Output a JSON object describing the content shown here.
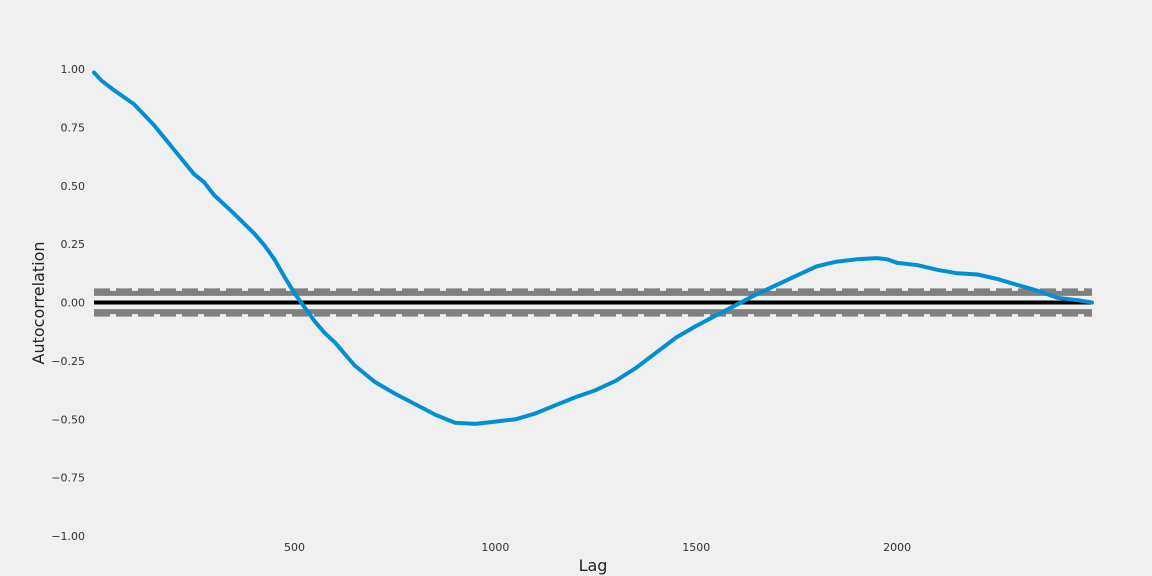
{
  "chart_data": {
    "type": "line",
    "title": "",
    "xlabel": "Lag",
    "ylabel": "Autocorrelation",
    "xlim": [
      1,
      2485
    ],
    "ylim": [
      -1.0,
      1.0
    ],
    "xticks": [
      500,
      1000,
      1500,
      2000
    ],
    "xtick_labels": [
      "500",
      "1000",
      "1500",
      "2000"
    ],
    "yticks": [
      1.0,
      0.75,
      0.5,
      0.25,
      0.0,
      -0.25,
      -0.5,
      -0.75,
      -1.0
    ],
    "ytick_labels": [
      "1.00",
      "0.75",
      "0.50",
      "0.25",
      "0.00",
      "−0.25",
      "−0.50",
      "−0.75",
      "−1.00"
    ],
    "grid": false,
    "reference_lines": [
      {
        "y": 0.0,
        "style": "solid",
        "color": "#000000"
      },
      {
        "y": 0.05,
        "style": "dashed",
        "color": "#808080"
      },
      {
        "y": 0.039,
        "style": "solid",
        "color": "#808080"
      },
      {
        "y": -0.039,
        "style": "solid",
        "color": "#808080"
      },
      {
        "y": -0.05,
        "style": "dashed",
        "color": "#808080"
      }
    ],
    "series": [
      {
        "color": "#008fd5",
        "x": [
          1,
          20,
          50,
          100,
          150,
          200,
          250,
          275,
          300,
          350,
          400,
          425,
          450,
          475,
          500,
          525,
          550,
          575,
          600,
          625,
          650,
          700,
          750,
          800,
          850,
          900,
          950,
          1000,
          1025,
          1050,
          1100,
          1150,
          1200,
          1250,
          1300,
          1350,
          1400,
          1450,
          1500,
          1550,
          1600,
          1650,
          1700,
          1750,
          1800,
          1850,
          1900,
          1950,
          1975,
          2000,
          2050,
          2100,
          2150,
          2200,
          2250,
          2300,
          2350,
          2400,
          2450,
          2485
        ],
        "y": [
          0.985,
          0.95,
          0.91,
          0.85,
          0.76,
          0.655,
          0.55,
          0.515,
          0.46,
          0.38,
          0.295,
          0.245,
          0.185,
          0.11,
          0.04,
          -0.02,
          -0.08,
          -0.13,
          -0.17,
          -0.22,
          -0.27,
          -0.34,
          -0.39,
          -0.435,
          -0.48,
          -0.515,
          -0.52,
          -0.51,
          -0.505,
          -0.5,
          -0.475,
          -0.44,
          -0.405,
          -0.375,
          -0.335,
          -0.28,
          -0.215,
          -0.15,
          -0.1,
          -0.055,
          -0.01,
          0.035,
          0.075,
          0.115,
          0.155,
          0.175,
          0.185,
          0.19,
          0.185,
          0.17,
          0.16,
          0.14,
          0.125,
          0.12,
          0.1,
          0.075,
          0.05,
          0.02,
          0.01,
          0.0
        ]
      }
    ]
  }
}
